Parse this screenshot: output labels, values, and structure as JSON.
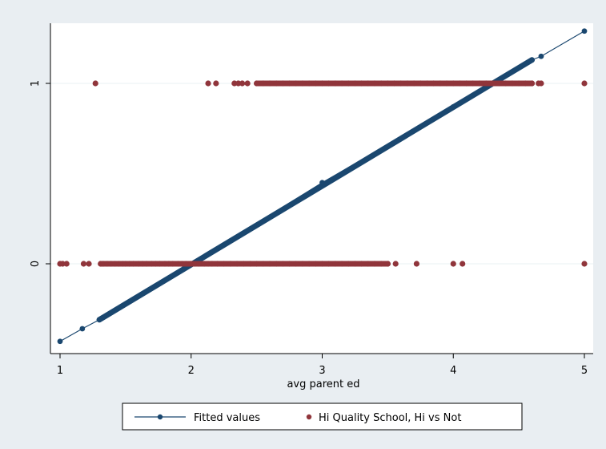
{
  "chart_data": {
    "type": "scatter",
    "title": "",
    "xlabel": "avg parent ed",
    "ylabel": "",
    "xlim": [
      1,
      5
    ],
    "ylim": [
      -0.45,
      1.3
    ],
    "x_ticks": [
      "1",
      "2",
      "3",
      "4",
      "5"
    ],
    "y_ticks": [
      "0",
      "1"
    ],
    "grid": "horizontal at y ticks",
    "legend_position": "bottom",
    "colors": {
      "fitted": "#1a476f",
      "observed": "#90353b",
      "plot_bg": "#ffffff",
      "outer_bg": "#e9eef2"
    },
    "series": [
      {
        "name": "Fitted values",
        "kind": "line",
        "x": [
          1,
          1.17,
          1.3,
          2,
          3,
          4,
          4.6,
          4.67,
          5
        ],
        "y": [
          -0.43,
          -0.36,
          -0.31,
          0.0,
          0.45,
          0.87,
          1.13,
          1.15,
          1.29
        ]
      },
      {
        "name": "Hi Quality School, Hi vs Not",
        "kind": "points",
        "x_y0": [
          1.0,
          1.02,
          1.05,
          1.18,
          1.22,
          1.31,
          1.33,
          1.36,
          1.39,
          1.42,
          1.45,
          1.48,
          1.5,
          1.53,
          1.56,
          1.6,
          1.63,
          1.66,
          1.7,
          1.73,
          1.76,
          1.8,
          1.83,
          1.86,
          1.9,
          1.93,
          1.96,
          2.0,
          2.03,
          2.06,
          2.1,
          2.13,
          2.16,
          2.2,
          2.25,
          2.3,
          2.35,
          2.4,
          2.45,
          2.5,
          2.55,
          2.6,
          2.65,
          2.7,
          2.75,
          2.8,
          2.85,
          2.9,
          2.95,
          3.0,
          3.05,
          3.1,
          3.15,
          3.2,
          3.25,
          3.3,
          3.35,
          3.4,
          3.45,
          3.5,
          3.56,
          3.72,
          4.0,
          4.07,
          5.0
        ],
        "x_y1": [
          1.27,
          2.13,
          2.19,
          2.33,
          2.36,
          2.39,
          2.43,
          2.5,
          2.55,
          2.6,
          2.65,
          2.7,
          2.75,
          2.8,
          2.85,
          2.9,
          2.95,
          3.0,
          3.05,
          3.1,
          3.15,
          3.2,
          3.25,
          3.3,
          3.35,
          3.4,
          3.45,
          3.5,
          3.55,
          3.6,
          3.65,
          3.7,
          3.75,
          3.8,
          3.85,
          3.9,
          3.95,
          4.0,
          4.05,
          4.1,
          4.15,
          4.2,
          4.25,
          4.3,
          4.35,
          4.4,
          4.45,
          4.5,
          4.55,
          4.6,
          4.65,
          4.67,
          5.0
        ]
      }
    ]
  }
}
